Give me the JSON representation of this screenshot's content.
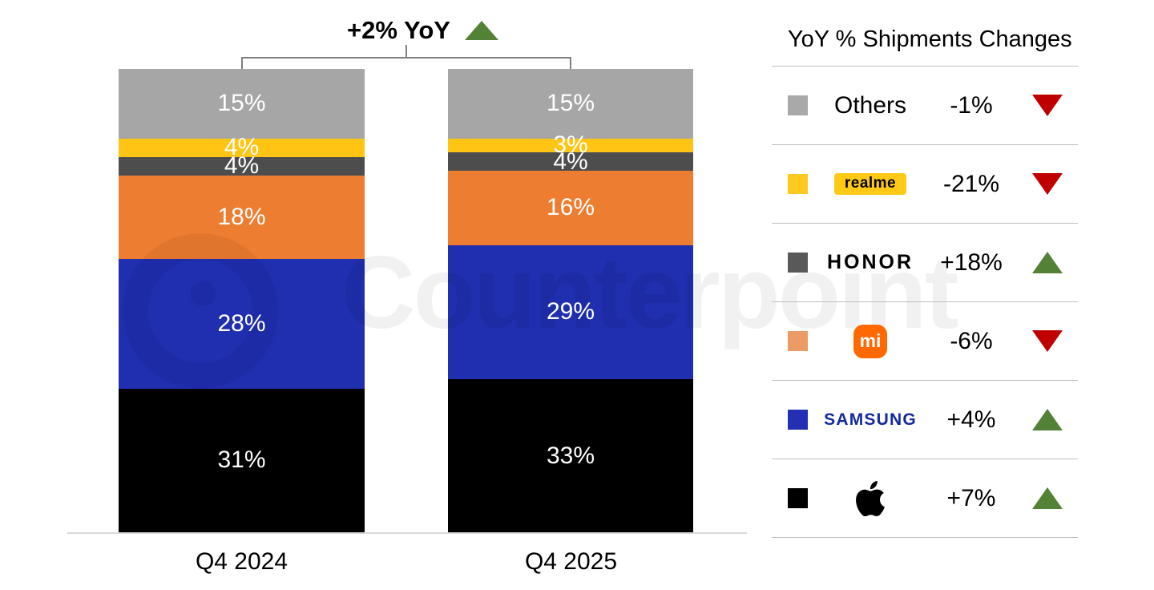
{
  "colors": {
    "up": "#538135",
    "down": "#C00000",
    "axis_line": "#D9D9D9",
    "bracket": "#808080",
    "samsung_logo_blue": "#1428A0",
    "mi_logo_orange": "#FF6900",
    "realme_badge_yellow": "#FFC915"
  },
  "annotation": {
    "label": "+2% YoY",
    "direction": "up"
  },
  "watermark": {
    "text": "Counterpoint"
  },
  "chart_data": {
    "type": "bar",
    "stacked": true,
    "title": "+2% YoY",
    "categories": [
      "Q4 2024",
      "Q4 2025"
    ],
    "value_suffix": "%",
    "ylim": [
      0,
      100
    ],
    "legend_position": "right",
    "grid": false,
    "series": [
      {
        "name": "Apple",
        "color": "#000000",
        "values": [
          31,
          33
        ]
      },
      {
        "name": "Samsung",
        "color": "#1F2FAF",
        "values": [
          28,
          29
        ]
      },
      {
        "name": "Xiaomi",
        "color": "#ED7D31",
        "values": [
          18,
          16
        ]
      },
      {
        "name": "HONOR",
        "color": "#4D4D4D",
        "values": [
          4,
          4
        ]
      },
      {
        "name": "realme",
        "color": "#FFC414",
        "values": [
          4,
          3
        ]
      },
      {
        "name": "Others",
        "color": "#A6A6A6",
        "values": [
          15,
          15
        ]
      }
    ]
  },
  "legend": {
    "title": "YoY % Shipments Changes",
    "rows": [
      {
        "name": "Others",
        "label": "Others",
        "value": "-1%",
        "direction": "down",
        "swatch": "#A9A9A9"
      },
      {
        "name": "realme",
        "label": "realme",
        "value": "-21%",
        "direction": "down",
        "swatch": "#FFC91F"
      },
      {
        "name": "HONOR",
        "label": "HONOR",
        "value": "+18%",
        "direction": "up",
        "swatch": "#595959"
      },
      {
        "name": "Xiaomi",
        "logo_text": "mi",
        "value": "-6%",
        "direction": "down",
        "swatch": "#EC9A66"
      },
      {
        "name": "Samsung",
        "label": "SAMSUNG",
        "value": "+4%",
        "direction": "up",
        "swatch": "#2430B4"
      },
      {
        "name": "Apple",
        "label": "",
        "value": "+7%",
        "direction": "up",
        "swatch": "#000000"
      }
    ]
  }
}
